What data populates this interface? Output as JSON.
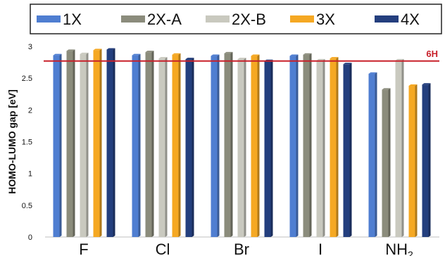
{
  "chart_data": {
    "type": "bar",
    "categories": [
      "F",
      "Cl",
      "Br",
      "I",
      "NH"
    ],
    "category_subscript": [
      "",
      "",
      "",
      "",
      "2"
    ],
    "ylabel": "HOMO-LUMO gap [eV]",
    "xlabel": "",
    "ylim": [
      0,
      3
    ],
    "yticks": [
      "0",
      "0.5",
      "1",
      "1.5",
      "2",
      "2.5",
      "3"
    ],
    "grid": false,
    "legend_position": "top",
    "series": [
      {
        "name": "1X",
        "color": "#4F7ED1",
        "values": [
          2.86,
          2.86,
          2.85,
          2.85,
          2.57
        ]
      },
      {
        "name": "2X-A",
        "color": "#8B8C7C",
        "values": [
          2.93,
          2.91,
          2.89,
          2.87,
          2.32
        ]
      },
      {
        "name": "2X-B",
        "color": "#C9C9BF",
        "values": [
          2.88,
          2.81,
          2.8,
          2.78,
          2.78
        ]
      },
      {
        "name": "3X",
        "color": "#F5A823",
        "values": [
          2.94,
          2.87,
          2.85,
          2.81,
          2.38
        ]
      },
      {
        "name": "4X",
        "color": "#243F7E",
        "values": [
          2.95,
          2.8,
          2.77,
          2.72,
          2.4
        ]
      }
    ],
    "reference_line": {
      "label": "6H",
      "value": 2.77,
      "color": "#C8202A"
    }
  }
}
